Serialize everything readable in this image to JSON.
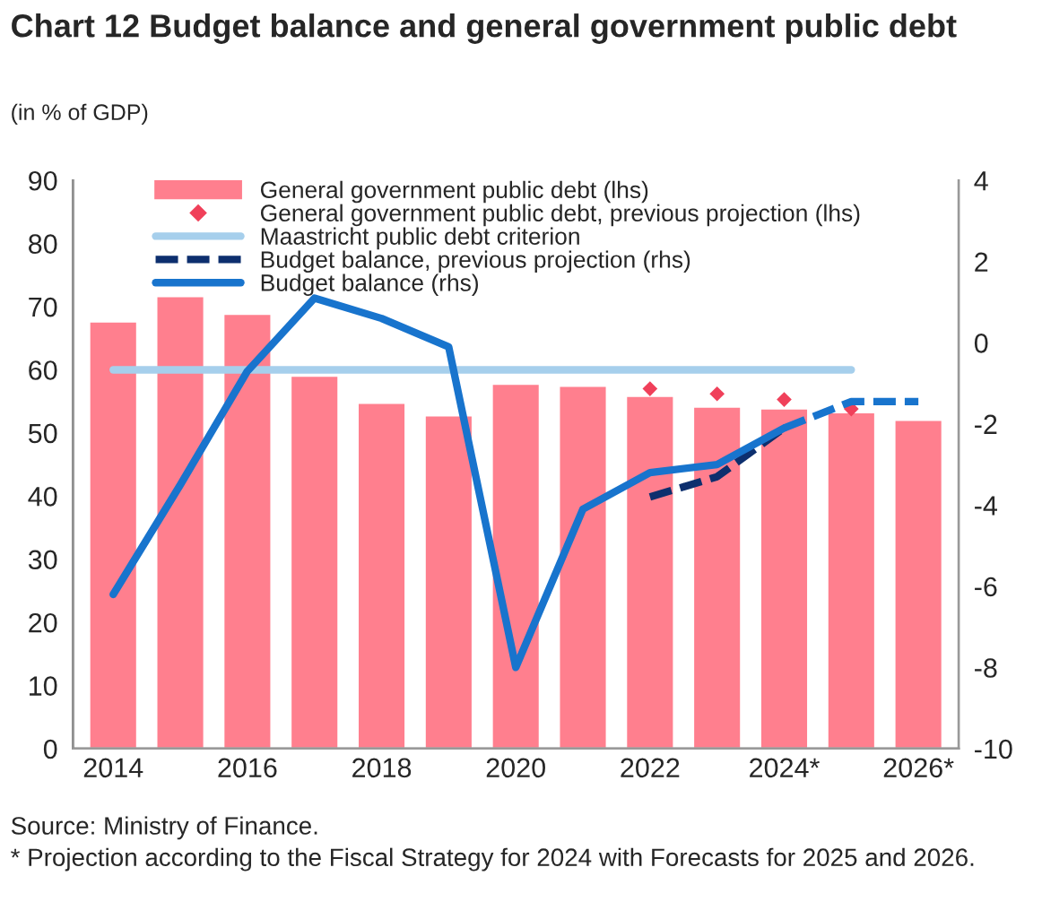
{
  "chart_data": {
    "type": "bar",
    "title": "Chart 12 Budget balance and general government public debt",
    "subtitle": "(in % of GDP)",
    "categories": [
      "2014",
      null,
      "2016",
      null,
      "2018",
      null,
      "2020",
      null,
      "2022",
      null,
      "2024*",
      null,
      "2026*"
    ],
    "series": [
      {
        "name": "General government public debt (lhs)",
        "color": "#ff7f8e",
        "values": [
          67.7,
          71.7,
          68.9,
          59.1,
          54.8,
          52.8,
          57.8,
          57.5,
          55.9,
          54.2,
          53.9,
          53.3,
          52.1
        ]
      },
      {
        "name": "General government public debt, previous projection (lhs)",
        "type": "scatter",
        "marker": "diamond",
        "color": "#f0405a",
        "values": [
          null,
          null,
          null,
          null,
          null,
          null,
          null,
          null,
          57.0,
          56.2,
          55.3,
          53.8,
          null
        ]
      },
      {
        "name": "Maastricht public debt criterion",
        "type": "line",
        "color": "#a6cfec",
        "values": [
          60,
          60,
          60,
          60,
          60,
          60,
          60,
          60,
          60,
          60,
          60,
          60,
          null
        ]
      },
      {
        "name": "Budget balance, previous projection (rhs)",
        "type": "line",
        "axis": "y2",
        "line_style": "dashed",
        "color": "#0d2f6e",
        "values": [
          null,
          null,
          null,
          null,
          null,
          null,
          null,
          null,
          -3.8,
          -3.3,
          -2.1,
          null,
          null
        ]
      },
      {
        "name": "Budget balance (rhs)",
        "type": "line",
        "axis": "y2",
        "line_style": "solid",
        "color": "#1874cd",
        "values": [
          -6.2,
          -3.5,
          -0.7,
          1.1,
          0.6,
          -0.1,
          -8.0,
          -4.1,
          -3.2,
          -3.0,
          -2.1,
          null,
          null
        ]
      },
      {
        "type": "line",
        "axis": "y2",
        "line_style": "dashed",
        "color": "#1874cd",
        "values": [
          null,
          null,
          null,
          null,
          null,
          null,
          null,
          null,
          null,
          null,
          -2.1,
          -1.45,
          -1.45
        ]
      }
    ],
    "ylim": [
      0,
      90
    ],
    "yticks": [
      0,
      10,
      20,
      30,
      40,
      50,
      60,
      70,
      80,
      90
    ],
    "y2lim": [
      -10,
      4
    ],
    "y2ticks": [
      -10,
      -8,
      -6,
      -4,
      -2,
      0,
      2,
      4
    ],
    "grid": false,
    "legend": "top left",
    "annotations": [
      "Source: Ministry of Finance.",
      "* Projection according to the Fiscal Strategy for 2024 with Forecasts for 2025 and 2026."
    ]
  }
}
